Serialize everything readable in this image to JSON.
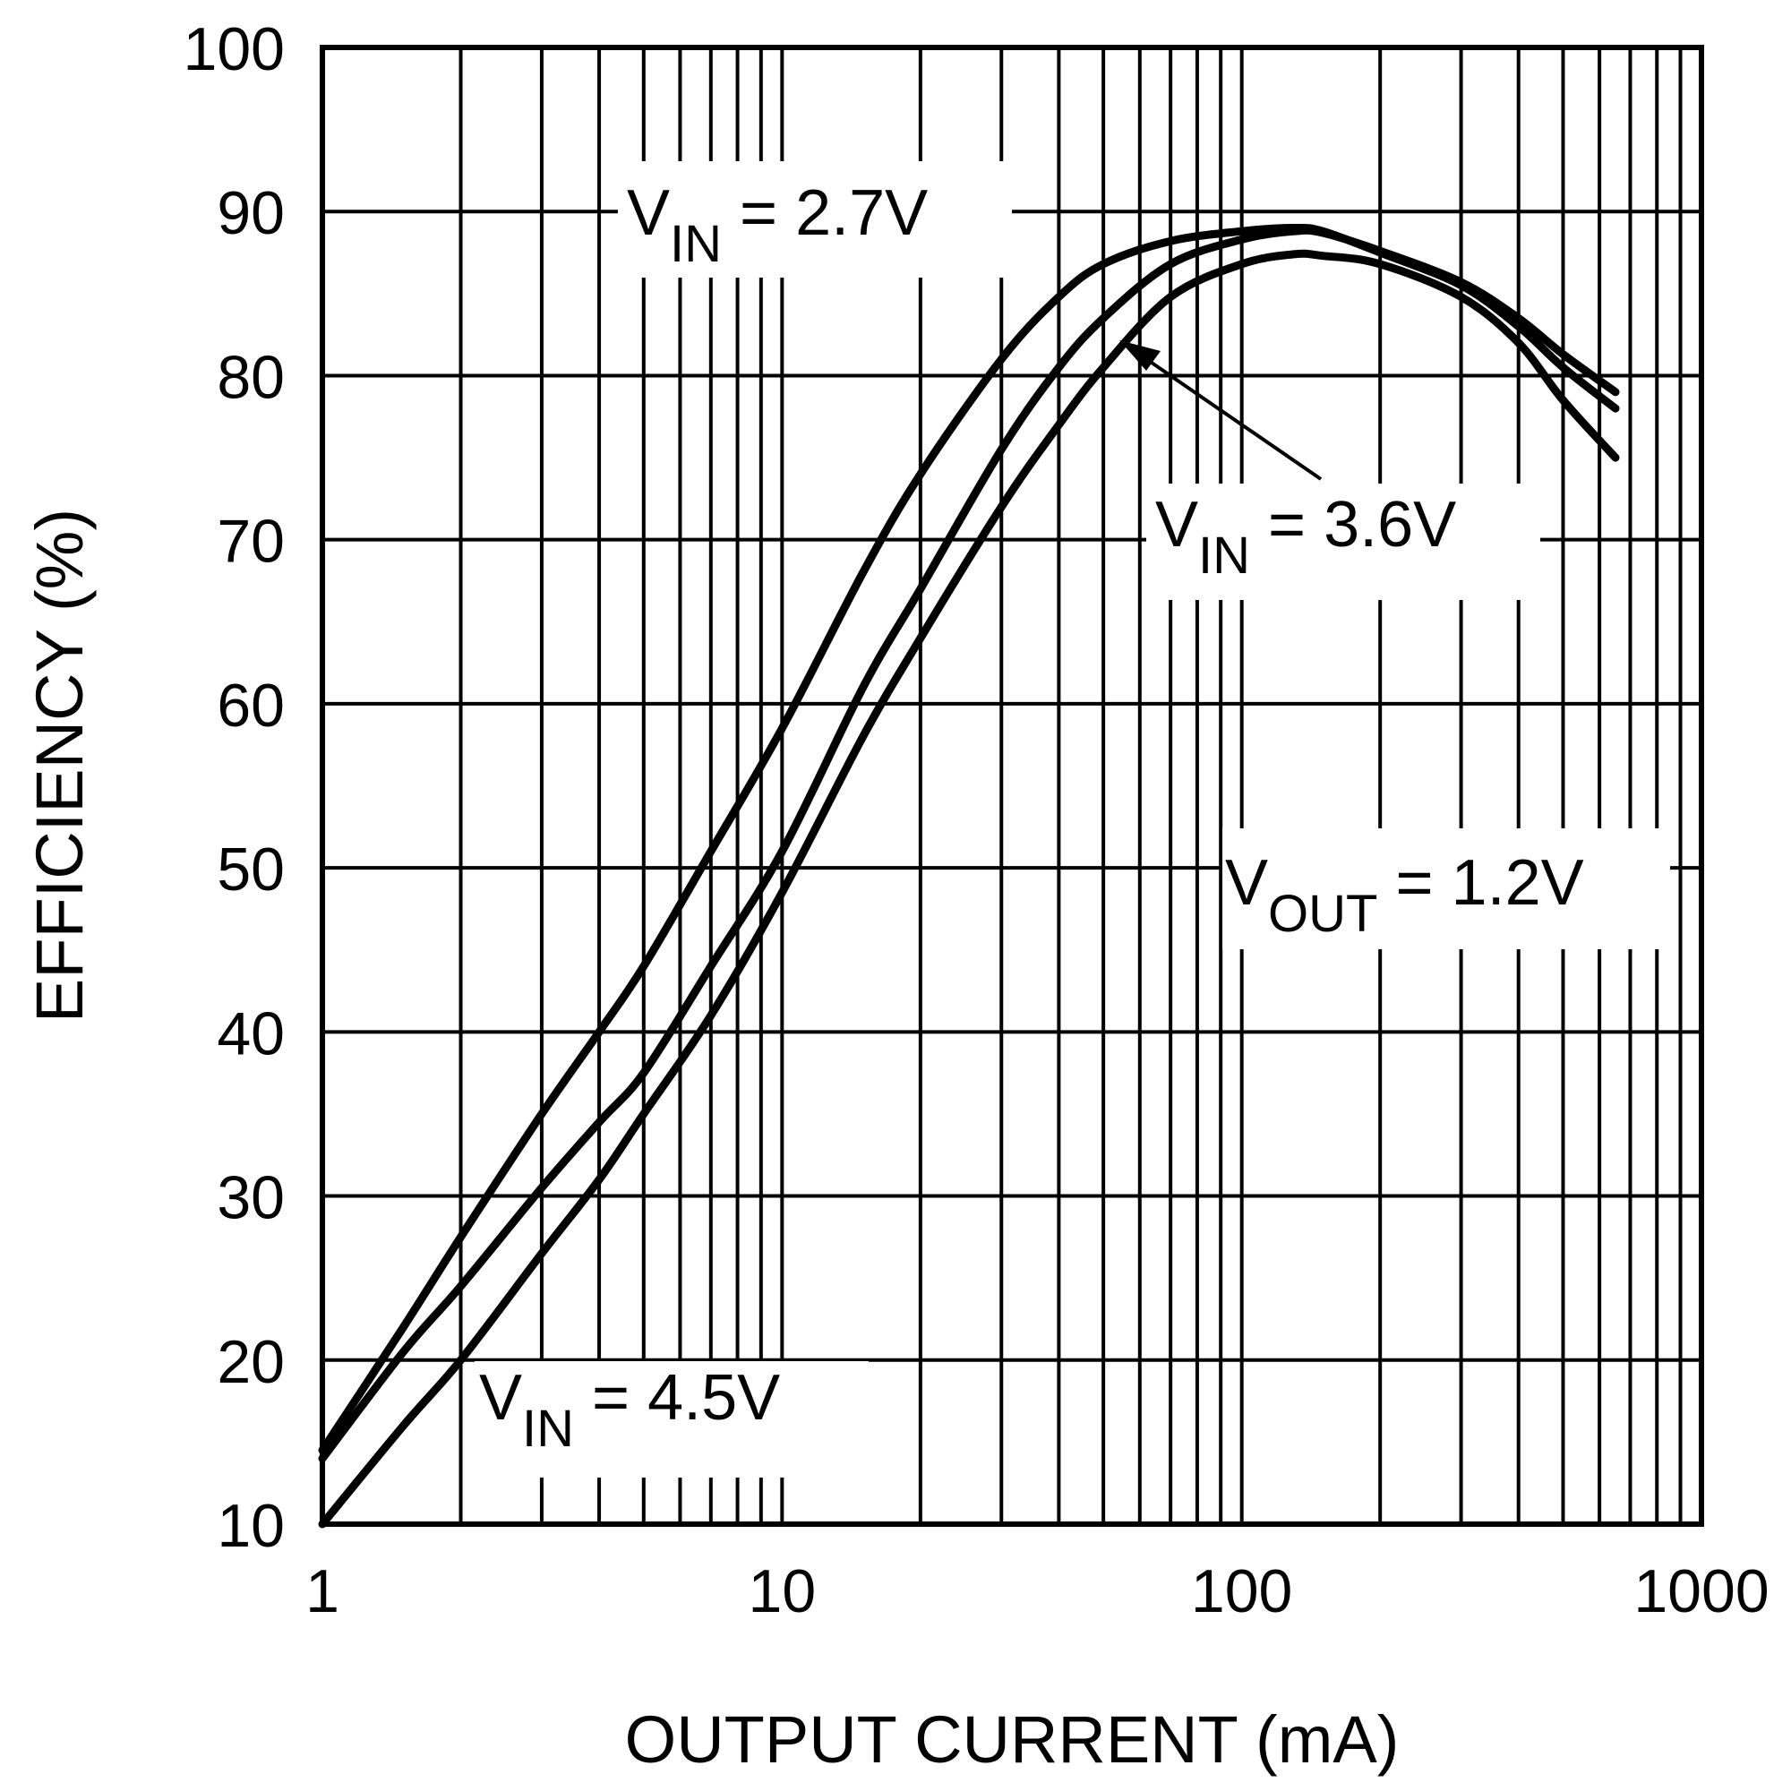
{
  "chart_data": {
    "type": "line",
    "title": "",
    "xlabel": "OUTPUT CURRENT (mA)",
    "ylabel": "EFFICIENCY (%)",
    "x_scale": "log",
    "xlim": [
      1,
      1000
    ],
    "ylim": [
      10,
      100
    ],
    "grid": true,
    "x_ticks": [
      "1",
      "10",
      "100",
      "1000"
    ],
    "y_ticks": [
      "10",
      "20",
      "30",
      "40",
      "50",
      "60",
      "70",
      "80",
      "90",
      "100"
    ],
    "series": [
      {
        "name": "VIN = 2.7V",
        "x": [
          1,
          1.5,
          2,
          3,
          4,
          5,
          7,
          10,
          15,
          20,
          30,
          40,
          50,
          70,
          100,
          130,
          150,
          200,
          300,
          400,
          500,
          650
        ],
        "y": [
          14.5,
          22,
          27.5,
          35,
          40,
          44,
          51,
          58.5,
          68,
          74,
          81,
          84.8,
          86.8,
          88.2,
          88.8,
          89,
          88.8,
          87.5,
          85.5,
          83,
          80.5,
          78
        ]
      },
      {
        "name": "VIN = 3.6V",
        "x": [
          1,
          1.5,
          2,
          3,
          4,
          5,
          7,
          10,
          15,
          20,
          30,
          40,
          50,
          70,
          100,
          130,
          150,
          200,
          300,
          400,
          500,
          650
        ],
        "y": [
          14,
          20.5,
          24.5,
          30.5,
          34.5,
          37.5,
          44,
          51,
          61,
          67,
          75.5,
          80.5,
          83.5,
          86.8,
          88.3,
          88.8,
          88.7,
          87.6,
          85.7,
          83.5,
          81.3,
          79
        ]
      },
      {
        "name": "VIN = 4.5V",
        "x": [
          1,
          1.5,
          2,
          3,
          4,
          5,
          7,
          10,
          15,
          20,
          30,
          40,
          50,
          70,
          100,
          130,
          150,
          200,
          300,
          400,
          500,
          650
        ],
        "y": [
          10,
          16,
          20,
          26.5,
          31,
          35,
          41,
          48.5,
          58,
          64,
          72,
          77,
          80.5,
          84.8,
          86.8,
          87.4,
          87.3,
          86.8,
          84.8,
          82,
          78.5,
          75
        ]
      }
    ],
    "annotations": [
      {
        "main": "V",
        "sub": "IN",
        "rest": " = 2.7V"
      },
      {
        "main": "V",
        "sub": "IN",
        "rest": " = 3.6V"
      },
      {
        "main": "V",
        "sub": "OUT",
        "rest": " = 1.2V"
      },
      {
        "main": "V",
        "sub": "IN",
        "rest": " = 4.5V"
      }
    ]
  },
  "colors": {
    "line": "#000000",
    "background": "#ffffff"
  }
}
